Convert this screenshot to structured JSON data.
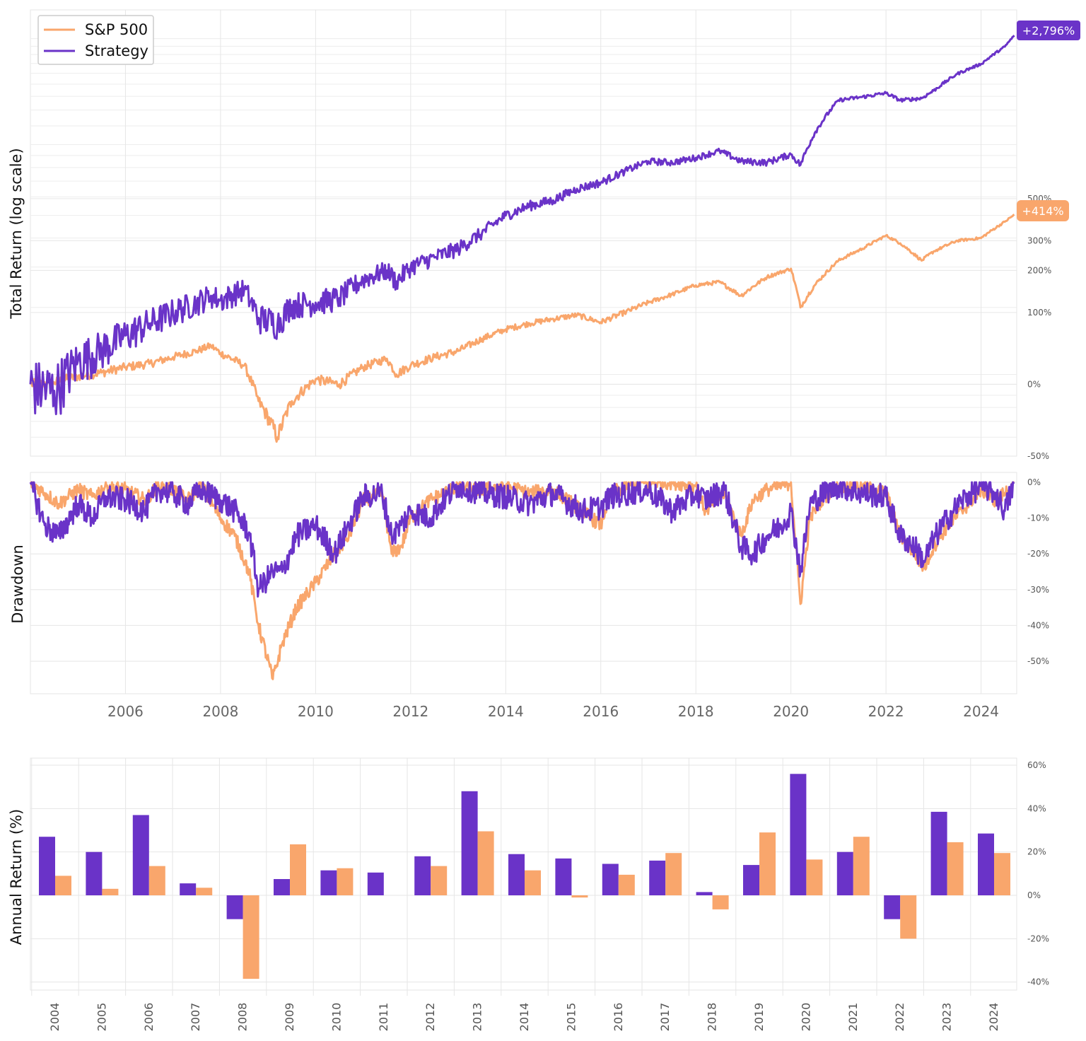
{
  "colors": {
    "sp500": "#f9a66c",
    "strategy": "#6a33c8",
    "grid": "#e6e6e6",
    "badge_strategy": "#6a33c8",
    "badge_sp500": "#f9a66c"
  },
  "legend": {
    "sp500": "S&P 500",
    "strategy": "Strategy"
  },
  "badges": {
    "strategy": "+2,796%",
    "sp500": "+414%"
  },
  "chart_data": [
    {
      "type": "line",
      "id": "total-return",
      "ylabel": "Total Return (log scale)",
      "yscale": "log(1 + return)",
      "ylim": [
        -50,
        2900
      ],
      "yticks": [
        500,
        300,
        200,
        100,
        0,
        -50
      ],
      "ytick_labels": [
        "500%",
        "300%",
        "200%",
        "100%",
        "0%",
        "-50%"
      ],
      "xlim": [
        2004,
        2024.75
      ],
      "grid": true,
      "legend_position": "top-left",
      "x": [
        2004.0,
        2004.5,
        2005.0,
        2005.5,
        2006.0,
        2006.5,
        2007.0,
        2007.5,
        2007.8,
        2008.0,
        2008.5,
        2008.8,
        2009.2,
        2009.5,
        2010.0,
        2010.5,
        2011.0,
        2011.5,
        2011.7,
        2012.0,
        2012.5,
        2013.0,
        2013.5,
        2014.0,
        2014.5,
        2015.0,
        2015.5,
        2016.0,
        2016.5,
        2017.0,
        2017.5,
        2018.0,
        2018.5,
        2018.95,
        2019.5,
        2020.0,
        2020.2,
        2020.5,
        2021.0,
        2021.5,
        2022.0,
        2022.3,
        2022.75,
        2023.0,
        2023.5,
        2024.0,
        2024.5,
        2024.7
      ],
      "series": [
        {
          "name": "S&P 500",
          "values": [
            0,
            2,
            8,
            12,
            18,
            22,
            30,
            38,
            45,
            35,
            20,
            -15,
            -40,
            -15,
            5,
            0,
            18,
            28,
            10,
            20,
            30,
            38,
            55,
            70,
            80,
            88,
            95,
            82,
            100,
            120,
            138,
            160,
            168,
            135,
            182,
            205,
            110,
            160,
            230,
            270,
            320,
            290,
            230,
            260,
            300,
            310,
            380,
            414
          ]
        },
        {
          "name": "Strategy",
          "values": [
            0,
            -6,
            25,
            40,
            60,
            80,
            100,
            120,
            135,
            125,
            150,
            90,
            80,
            115,
            120,
            130,
            175,
            200,
            170,
            210,
            240,
            270,
            330,
            410,
            460,
            490,
            560,
            600,
            680,
            760,
            750,
            790,
            850,
            760,
            750,
            820,
            730,
            1030,
            1450,
            1500,
            1560,
            1450,
            1480,
            1600,
            1900,
            2100,
            2500,
            2796
          ]
        }
      ]
    },
    {
      "type": "line",
      "id": "drawdown",
      "ylabel": "Drawdown",
      "ylim": [
        -60,
        3
      ],
      "yticks": [
        0,
        -10,
        -20,
        -30,
        -40,
        -50
      ],
      "ytick_labels": [
        "0%",
        "-10%",
        "-20%",
        "-30%",
        "-40%",
        "-50%"
      ],
      "xlim": [
        2004,
        2024.75
      ],
      "xtick_labels": [
        "2006",
        "2008",
        "2010",
        "2012",
        "2014",
        "2016",
        "2018",
        "2020",
        "2022",
        "2024"
      ],
      "grid": true,
      "x": [
        2004.0,
        2004.3,
        2004.6,
        2005.0,
        2005.3,
        2005.6,
        2006.0,
        2006.4,
        2006.7,
        2007.0,
        2007.3,
        2007.6,
        2008.0,
        2008.3,
        2008.6,
        2008.8,
        2009.1,
        2009.3,
        2009.6,
        2010.0,
        2010.4,
        2010.7,
        2011.0,
        2011.4,
        2011.6,
        2011.8,
        2012.0,
        2012.4,
        2012.7,
        2013.0,
        2013.5,
        2014.0,
        2014.5,
        2015.0,
        2015.6,
        2016.0,
        2016.2,
        2016.6,
        2017.0,
        2017.5,
        2018.0,
        2018.2,
        2018.6,
        2018.95,
        2019.2,
        2019.5,
        2019.8,
        2020.0,
        2020.2,
        2020.4,
        2020.7,
        2021.0,
        2021.5,
        2022.0,
        2022.3,
        2022.6,
        2022.8,
        2023.0,
        2023.3,
        2023.6,
        2024.0,
        2024.3,
        2024.5,
        2024.7
      ],
      "series": [
        {
          "name": "S&P 500",
          "values": [
            0,
            -3,
            -6,
            -2,
            -4,
            -1,
            -2,
            -5,
            -1,
            -2,
            -5,
            -1,
            -10,
            -15,
            -25,
            -40,
            -55,
            -45,
            -35,
            -28,
            -20,
            -15,
            -5,
            -3,
            -20,
            -18,
            -10,
            -5,
            -3,
            -1,
            -2,
            -1,
            -3,
            -2,
            -8,
            -12,
            -3,
            -1,
            0,
            0,
            -1,
            -8,
            -3,
            -15,
            -5,
            -2,
            -1,
            0,
            -34,
            -10,
            -4,
            -1,
            -1,
            -3,
            -15,
            -20,
            -24,
            -18,
            -12,
            -8,
            -2,
            -5,
            -3,
            0
          ]
        },
        {
          "name": "Strategy",
          "values": [
            0,
            -12,
            -15,
            -6,
            -10,
            -4,
            -5,
            -8,
            -2,
            -3,
            -6,
            -2,
            -5,
            -8,
            -14,
            -30,
            -25,
            -25,
            -15,
            -12,
            -20,
            -12,
            -4,
            -3,
            -15,
            -12,
            -8,
            -10,
            -5,
            -1,
            -3,
            -4,
            -6,
            -3,
            -8,
            -7,
            -4,
            -3,
            -2,
            -8,
            -3,
            -5,
            -2,
            -18,
            -20,
            -15,
            -12,
            -8,
            -25,
            -6,
            -3,
            -1,
            -3,
            -4,
            -15,
            -18,
            -22,
            -16,
            -10,
            -5,
            -1,
            -3,
            -8,
            0
          ]
        }
      ]
    },
    {
      "type": "bar",
      "id": "annual-return",
      "ylabel": "Annual Return (%)",
      "ylim": [
        -40,
        60
      ],
      "yticks": [
        60,
        40,
        20,
        0,
        -20,
        -40
      ],
      "ytick_labels": [
        "60%",
        "40%",
        "20%",
        "0%",
        "-20%",
        "-40%"
      ],
      "grid": true,
      "categories": [
        "2004",
        "2005",
        "2006",
        "2007",
        "2008",
        "2009",
        "2010",
        "2011",
        "2012",
        "2013",
        "2014",
        "2015",
        "2016",
        "2017",
        "2018",
        "2019",
        "2020",
        "2021",
        "2022",
        "2023",
        "2024"
      ],
      "series": [
        {
          "name": "Strategy",
          "values": [
            27,
            20,
            37,
            5.5,
            -11,
            7.5,
            11.5,
            10.5,
            18,
            48,
            19,
            17,
            14.5,
            16,
            1.5,
            14,
            56,
            20,
            -11,
            38.5,
            28.5
          ]
        },
        {
          "name": "S&P 500",
          "values": [
            9,
            3,
            13.5,
            3.5,
            -38.5,
            23.5,
            12.5,
            0,
            13.5,
            29.5,
            11.5,
            -1,
            9.5,
            19.5,
            -6.5,
            29,
            16.5,
            27,
            -20,
            24.5,
            19.5
          ]
        }
      ]
    }
  ]
}
